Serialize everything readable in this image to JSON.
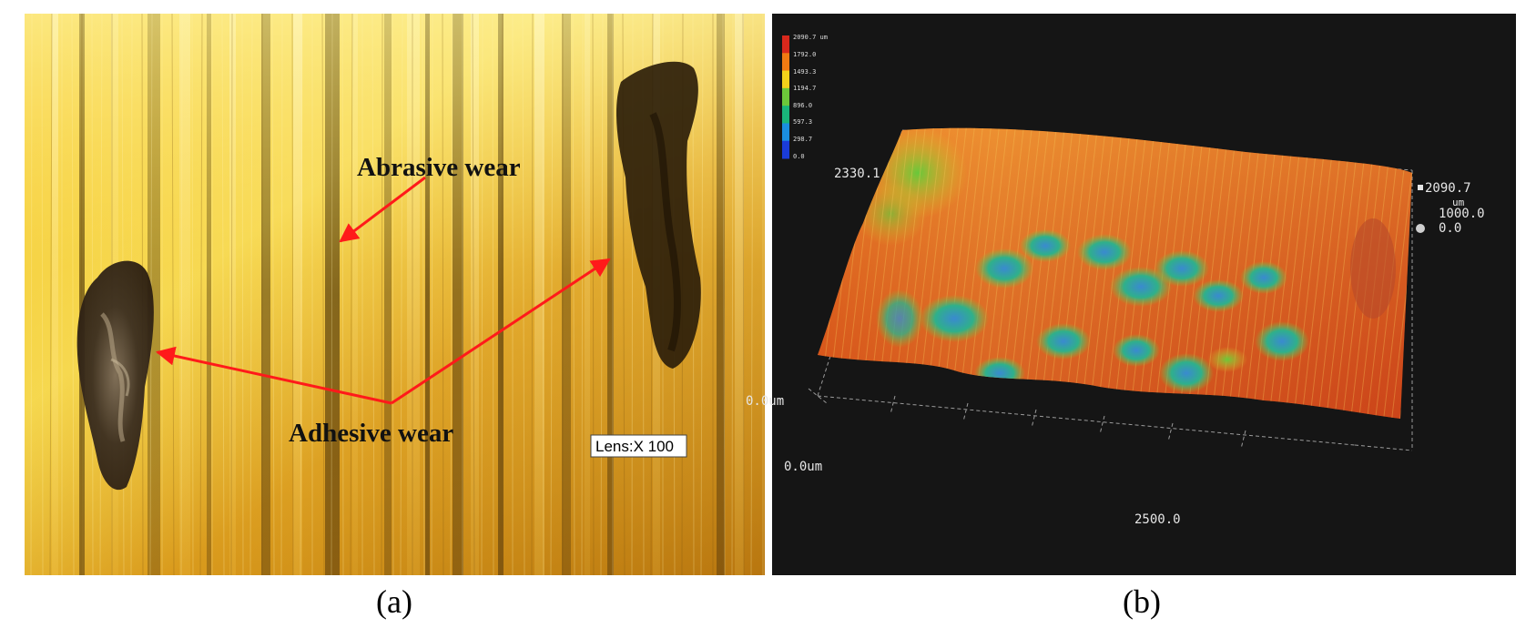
{
  "panel_a": {
    "label_abrasive": "Abrasive wear",
    "label_adhesive": "Adhesive wear",
    "lens_label": "Lens:X 100",
    "caption": "(a)",
    "arrow_color": "#ff1a1a"
  },
  "panel_b": {
    "colorbar": {
      "ticks": [
        "2090.7 um",
        "1792.0",
        "1493.3",
        "1194.7",
        "896.0",
        "597.3",
        "298.7",
        "0.0"
      ],
      "colors": [
        "#d8281c",
        "#f07a12",
        "#f2d21a",
        "#6cc83a",
        "#19b57a",
        "#1a8ee0",
        "#1a3cd8"
      ]
    },
    "axis_y_max": "2330.1",
    "axis_origin_back": "0.0um",
    "axis_origin_front": "0.0um",
    "axis_x_max": "2500.0",
    "z_max": "2090.7",
    "z_unit": "um",
    "z_mid": "1000.0",
    "z_min": "0.0",
    "caption": "(b)"
  }
}
